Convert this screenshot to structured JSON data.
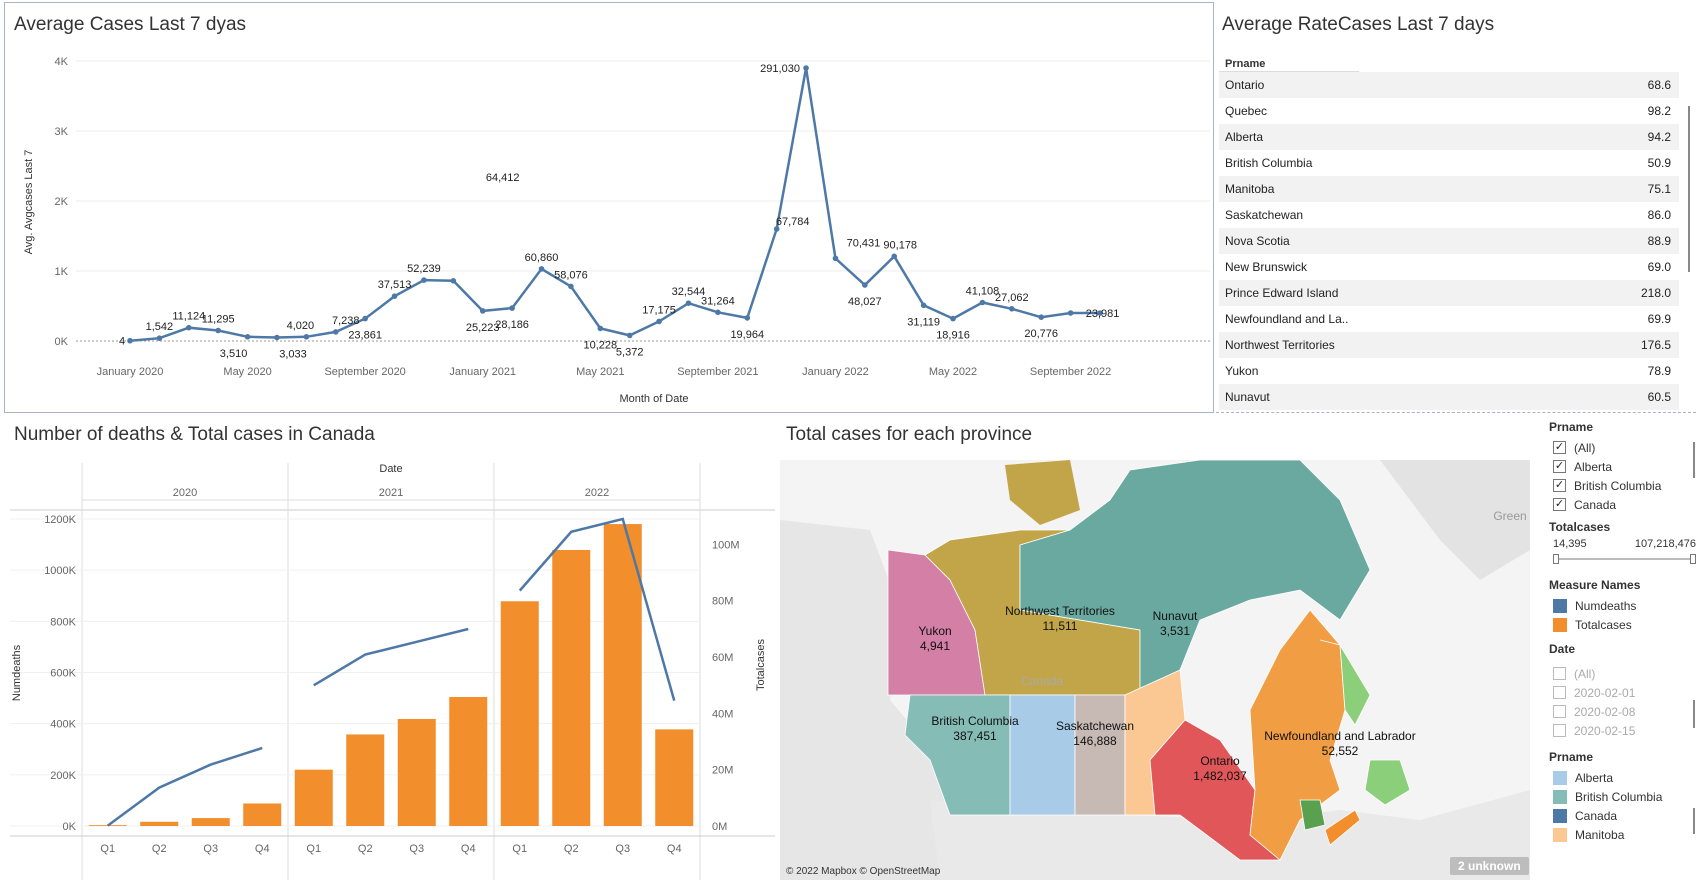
{
  "line_panel": {
    "title": "Average Cases Last 7 dyas"
  },
  "rate_panel": {
    "title": "Average RateCases Last 7 days",
    "column_header": "Prname",
    "rows": [
      {
        "name": "Ontario",
        "value": "68.6"
      },
      {
        "name": "Quebec",
        "value": "98.2"
      },
      {
        "name": "Alberta",
        "value": "94.2"
      },
      {
        "name": "British Columbia",
        "value": "50.9"
      },
      {
        "name": "Manitoba",
        "value": "75.1"
      },
      {
        "name": "Saskatchewan",
        "value": "86.0"
      },
      {
        "name": "Nova Scotia",
        "value": "88.9"
      },
      {
        "name": "New Brunswick",
        "value": "69.0"
      },
      {
        "name": "Prince Edward Island",
        "value": "218.0"
      },
      {
        "name": "Newfoundland and La..",
        "value": "69.9"
      },
      {
        "name": "Northwest Territories",
        "value": "176.5"
      },
      {
        "name": "Yukon",
        "value": "78.9"
      },
      {
        "name": "Nunavut",
        "value": "60.5"
      }
    ]
  },
  "combo_panel": {
    "title": "Number of deaths & Total cases in Canada"
  },
  "map_panel": {
    "title": "Total cases for each province",
    "attribution": "© 2022 Mapbox © OpenStreetMap",
    "unknown_badge": "2 unknown",
    "faint_labels": [
      "Green",
      "Canada"
    ],
    "regions": [
      {
        "name": "Yukon",
        "value": "4,941",
        "color": "#d37fa6"
      },
      {
        "name": "Northwest Territories",
        "value": "11,511",
        "color": "#c1a548"
      },
      {
        "name": "Nunavut",
        "value": "3,531",
        "color": "#6aa99f"
      },
      {
        "name": "British Columbia",
        "value": "387,451",
        "color": "#86bcb6"
      },
      {
        "name": "Alberta",
        "value": "",
        "color": "#a8cbe8"
      },
      {
        "name": "Saskatchewan",
        "value": "146,888",
        "color": "#c7b9b3"
      },
      {
        "name": "Manitoba",
        "value": "",
        "color": "#fbc894"
      },
      {
        "name": "Ontario",
        "value": "1,482,037",
        "color": "#e15759"
      },
      {
        "name": "Quebec",
        "value": "",
        "color": "#f19d43"
      },
      {
        "name": "Newfoundland and Labrador",
        "value": "52,552",
        "color": "#8ccf7a"
      },
      {
        "name": "New Brunswick",
        "value": "",
        "color": "#59a14f"
      },
      {
        "name": "Nova Scotia",
        "value": "",
        "color": "#f28e2b"
      }
    ]
  },
  "legend": {
    "prname_filter": {
      "title": "Prname",
      "items": [
        {
          "label": "(All)",
          "checked": "true"
        },
        {
          "label": "Alberta",
          "checked": "true"
        },
        {
          "label": "British Columbia",
          "checked": "true"
        },
        {
          "label": "Canada",
          "checked": "true"
        }
      ]
    },
    "totalcases": {
      "title": "Totalcases",
      "min": "14,395",
      "max": "107,218,476"
    },
    "measure_names": {
      "title": "Measure Names",
      "items": [
        {
          "label": "Numdeaths",
          "color": "#4e79a7"
        },
        {
          "label": "Totalcases",
          "color": "#f28e2b"
        }
      ]
    },
    "date_filter": {
      "title": "Date",
      "items": [
        {
          "label": "(All)"
        },
        {
          "label": "2020-02-01"
        },
        {
          "label": "2020-02-08"
        },
        {
          "label": "2020-02-15"
        }
      ]
    },
    "prname_colors": {
      "title": "Prname",
      "items": [
        {
          "label": "Alberta",
          "color": "#a8cbe8"
        },
        {
          "label": "British Columbia",
          "color": "#86bcb6"
        },
        {
          "label": "Canada",
          "color": "#4e79a7"
        },
        {
          "label": "Manitoba",
          "color": "#fbc894"
        }
      ]
    }
  },
  "chart_data": [
    {
      "type": "line",
      "title": "Average Cases Last 7 dyas",
      "xlabel": "Month of Date",
      "ylabel": "Avg. Avgcases Last 7",
      "ylim": [
        0,
        4000
      ],
      "y_ticks": [
        "0K",
        "1K",
        "2K",
        "3K",
        "4K"
      ],
      "x_tick_labels": [
        "January 2020",
        "May 2020",
        "September 2020",
        "January 2021",
        "May 2021",
        "September 2021",
        "January 2022",
        "May 2022",
        "September 2022"
      ],
      "x": [
        "2020-01",
        "2020-02",
        "2020-03",
        "2020-04",
        "2020-05",
        "2020-06",
        "2020-07",
        "2020-08",
        "2020-09",
        "2020-10",
        "2020-11",
        "2020-12",
        "2021-01",
        "2021-02",
        "2021-03",
        "2021-04",
        "2021-05",
        "2021-06",
        "2021-07",
        "2021-08",
        "2021-09",
        "2021-10",
        "2021-11",
        "2021-12",
        "2022-01",
        "2022-02",
        "2022-03",
        "2022-04",
        "2022-05",
        "2022-06",
        "2022-07",
        "2022-08",
        "2022-09",
        "2022-10"
      ],
      "values": [
        4,
        40,
        190,
        150,
        60,
        50,
        60,
        130,
        320,
        640,
        870,
        860,
        430,
        470,
        1030,
        780,
        180,
        80,
        280,
        540,
        410,
        330,
        1600,
        3900,
        1180,
        800,
        1210,
        510,
        320,
        550,
        460,
        340,
        400,
        400
      ],
      "point_labels": [
        "4",
        "1,542",
        "11,124",
        "11,295",
        "3,510",
        "3,033",
        "4,020",
        "7,238",
        "23,861",
        "37,513",
        "52,239",
        "",
        "25,223",
        "28,186",
        "60,860",
        "58,076",
        "10,228",
        "5,372",
        "17,175",
        "32,544",
        "31,264",
        "19,964",
        "67,784",
        "291,030",
        "70,431",
        "48,027",
        "90,178",
        "31,119",
        "18,916",
        "41,108",
        "27,062",
        "20,776",
        "23,981",
        "64,412"
      ],
      "grid": true
    },
    {
      "type": "bar",
      "title": "Number of deaths & Total cases in Canada",
      "xlabel": "Date",
      "years": [
        "2020",
        "2021",
        "2022"
      ],
      "quarters": [
        "Q1",
        "Q2",
        "Q3",
        "Q4"
      ],
      "y_left_label": "Numdeaths",
      "y_left_ticks": [
        "0K",
        "200K",
        "400K",
        "600K",
        "800K",
        "1000K",
        "1200K"
      ],
      "y_left_lim": [
        0,
        1200000
      ],
      "y_right_label": "Totalcases",
      "y_right_ticks": [
        "0M",
        "20M",
        "40M",
        "60M",
        "80M",
        "100M"
      ],
      "y_right_lim": [
        0,
        109000000
      ],
      "series": [
        {
          "name": "Numdeaths",
          "type": "line",
          "color": "#4e79a7",
          "values": [
            [
              1500,
              150000,
              240000,
              305000
            ],
            [
              550000,
              670000,
              720000,
              770000
            ],
            [
              920000,
              1150000,
              1200000,
              490000
            ]
          ]
        },
        {
          "name": "Totalcases",
          "type": "bar",
          "color": "#f28e2b",
          "values": [
            [
              300000,
              1500000,
              2800000,
              8000000
            ],
            [
              20000000,
              32500000,
              38000000,
              45800000
            ],
            [
              79800000,
              98000000,
              107200000,
              34300000
            ]
          ]
        }
      ]
    }
  ]
}
